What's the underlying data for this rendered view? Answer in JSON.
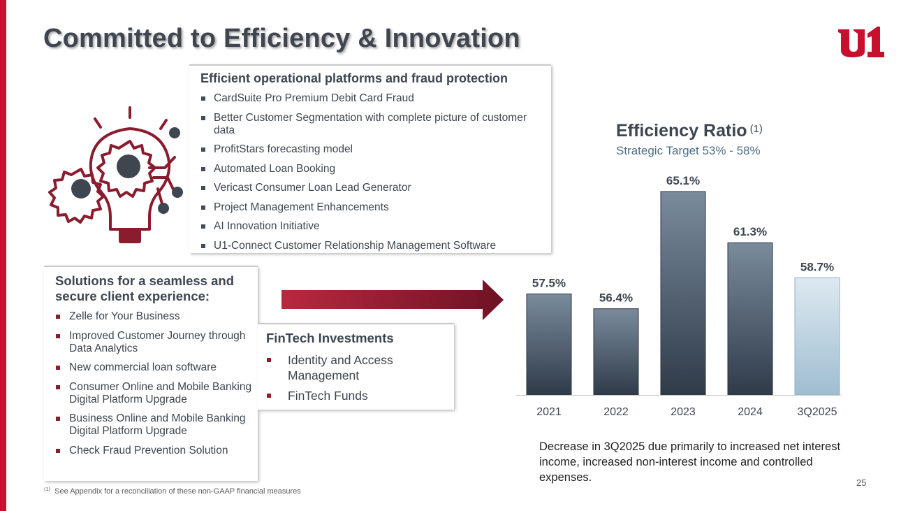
{
  "header": {
    "title": "Committed to Efficiency & Innovation",
    "logo_text": "u1"
  },
  "platforms": {
    "heading": "Efficient operational platforms and fraud protection",
    "items": [
      "CardSuite Pro Premium Debit Card Fraud",
      "Better Customer Segmentation with complete picture of customer data",
      "ProfitStars forecasting model",
      "Automated Loan Booking",
      "Vericast Consumer Loan Lead Generator",
      "Project Management Enhancements",
      "AI Innovation Initiative",
      "U1-Connect Customer Relationship Management Software"
    ]
  },
  "solutions": {
    "heading": "Solutions for a seamless and secure client experience:",
    "items": [
      "Zelle for Your Business",
      "Improved Customer Journey through Data Analytics",
      "New commercial loan software",
      "Consumer Online and Mobile Banking Digital Platform Upgrade",
      "Business Online and Mobile Banking Digital Platform Upgrade",
      "Check Fraud Prevention Solution"
    ]
  },
  "fintech": {
    "heading": "FinTech Investments",
    "items": [
      "Identity and Access Management",
      "FinTech Funds"
    ]
  },
  "chart_data": {
    "type": "bar",
    "title": "Efficiency Ratio",
    "title_footnote": "(1)",
    "subtitle": "Strategic Target 53% - 58%",
    "categories": [
      "2021",
      "2022",
      "2023",
      "2024",
      "3Q2025"
    ],
    "values": [
      57.5,
      56.4,
      65.1,
      61.3,
      58.7
    ],
    "value_labels": [
      "57.5%",
      "56.4%",
      "65.1%",
      "61.3%",
      "58.7%"
    ],
    "unit": "%",
    "colors": {
      "bar": "#4a5a6c",
      "highlight_bar": "#b9d3e2"
    },
    "highlighted_category": "3Q2025",
    "grid": false,
    "legend": "none"
  },
  "note": "Decrease in 3Q2025 due primarily to increased net interest income, increased non-interest income and controlled expenses.",
  "footnote": {
    "marker": "(1)",
    "text": "See Appendix for a reconciliation of these non-GAAP financial measures"
  },
  "page_number": "25",
  "icons": [
    "lightbulb-gears-icon",
    "arrow-right-icon"
  ],
  "colors": {
    "brand_red": "#c8102e",
    "dark_red": "#8a1c2e",
    "text_gray": "#3d4650",
    "subtitle_blue": "#4f6e86"
  }
}
